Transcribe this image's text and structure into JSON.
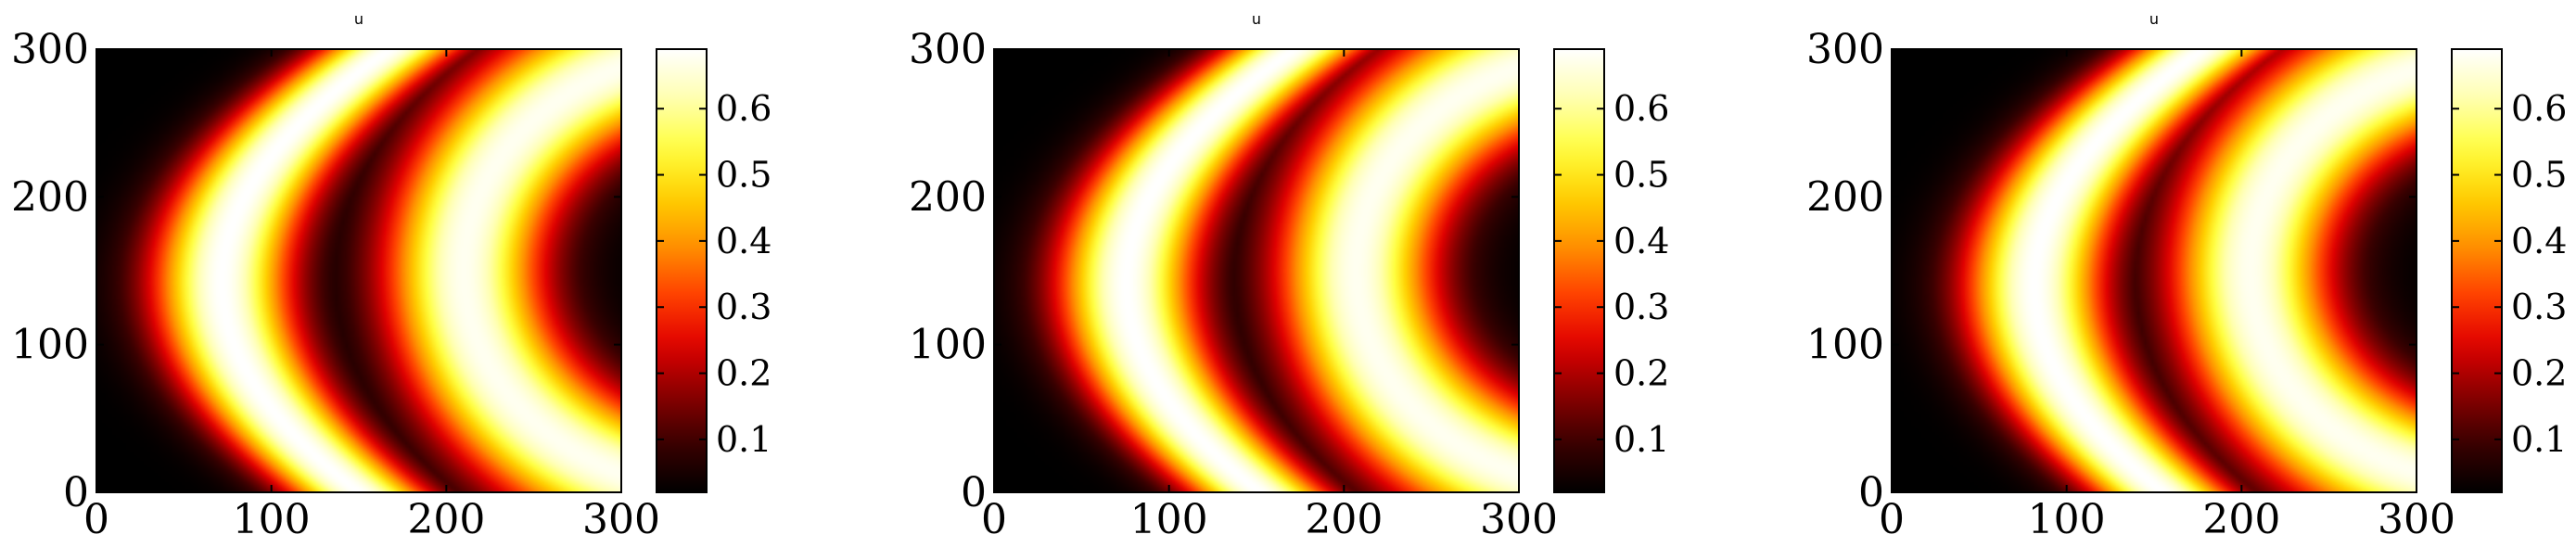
{
  "colormap": {
    "name": "hot",
    "stops": [
      "#000000",
      "#3a0000",
      "#8b0000",
      "#e00000",
      "#ff4000",
      "#ff9000",
      "#ffd000",
      "#ffff40",
      "#ffffb0",
      "#ffffff"
    ],
    "axis_color": "#000000",
    "background": "#ffffff"
  },
  "chart_data": [
    {
      "type": "heatmap",
      "title": "u",
      "xlabel": "",
      "ylabel": "",
      "xlim": [
        0,
        300
      ],
      "ylim": [
        0,
        300
      ],
      "xticks": [
        0,
        100,
        200,
        300
      ],
      "yticks": [
        0,
        100,
        200,
        300
      ],
      "xtick_labels": [
        "0",
        "100",
        "200",
        "300"
      ],
      "ytick_labels": [
        "0",
        "100",
        "200",
        "300"
      ],
      "colorbar": {
        "range": [
          0.02,
          0.69
        ],
        "ticks": [
          0.1,
          0.2,
          0.3,
          0.4,
          0.5,
          0.6
        ],
        "tick_labels": [
          "0.1",
          "0.2",
          "0.3",
          "0.4",
          "0.5",
          "0.6"
        ]
      },
      "field": {
        "description_units": "data",
        "band_centers_at_y": [
          [
            0,
            150
          ],
          [
            150,
            72
          ],
          [
            300,
            168
          ]
        ],
        "outer_ring_center": [
          360,
          150
        ],
        "outer_ring_radius": 150,
        "peak": 0.69,
        "floor": 0.02
      }
    },
    {
      "type": "heatmap",
      "title": "u",
      "xlabel": "",
      "ylabel": "",
      "xlim": [
        0,
        300
      ],
      "ylim": [
        0,
        300
      ],
      "xticks": [
        0,
        100,
        200,
        300
      ],
      "yticks": [
        0,
        100,
        200,
        300
      ],
      "xtick_labels": [
        "0",
        "100",
        "200",
        "300"
      ],
      "ytick_labels": [
        "0",
        "100",
        "200",
        "300"
      ],
      "colorbar": {
        "range": [
          0.02,
          0.69
        ],
        "ticks": [
          0.1,
          0.2,
          0.3,
          0.4,
          0.5,
          0.6
        ],
        "tick_labels": [
          "0.1",
          "0.2",
          "0.3",
          "0.4",
          "0.5",
          "0.6"
        ]
      },
      "field": {
        "description_units": "data",
        "band_centers_at_y": [
          [
            0,
            152
          ],
          [
            150,
            76
          ],
          [
            300,
            172
          ]
        ],
        "outer_ring_center": [
          355,
          150
        ],
        "outer_ring_radius": 148,
        "peak": 0.69,
        "floor": 0.02
      }
    },
    {
      "type": "heatmap",
      "title": "u",
      "xlabel": "",
      "ylabel": "",
      "xlim": [
        0,
        300
      ],
      "ylim": [
        0,
        300
      ],
      "xticks": [
        0,
        100,
        200,
        300
      ],
      "yticks": [
        0,
        100,
        200,
        300
      ],
      "xtick_labels": [
        "0",
        "100",
        "200",
        "300"
      ],
      "ytick_labels": [
        "0",
        "100",
        "200",
        "300"
      ],
      "colorbar": {
        "range": [
          0.02,
          0.69
        ],
        "ticks": [
          0.1,
          0.2,
          0.3,
          0.4,
          0.5,
          0.6
        ],
        "tick_labels": [
          "0.1",
          "0.2",
          "0.3",
          "0.4",
          "0.5",
          "0.6"
        ]
      },
      "field": {
        "description_units": "data",
        "band_centers_at_y": [
          [
            0,
            155
          ],
          [
            150,
            82
          ],
          [
            300,
            178
          ]
        ],
        "outer_ring_center": [
          350,
          150
        ],
        "outer_ring_radius": 145,
        "peak": 0.69,
        "floor": 0.02
      }
    }
  ]
}
